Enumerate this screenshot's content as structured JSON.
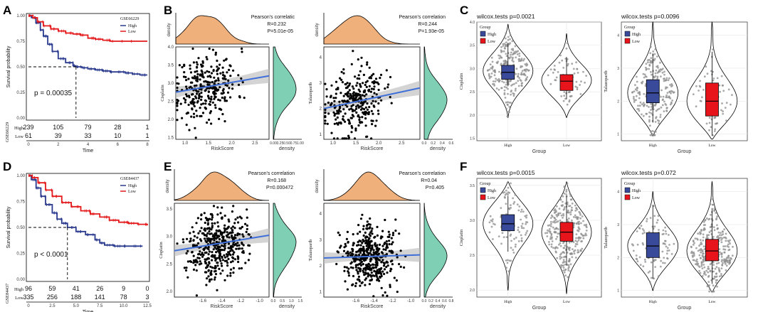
{
  "panel_labels": {
    "A": "A",
    "B": "B",
    "C": "C",
    "D": "D",
    "E": "E",
    "F": "F"
  },
  "colors": {
    "high": "#2b3b8f",
    "low": "#e41a1c",
    "orange": "#f0b07c",
    "teal": "#7fcfb5",
    "blue": "#3f6fd8",
    "box_high": "#3a4a9a",
    "box_low": "#e8141c",
    "grey_pts": "#8c8c8c"
  },
  "chart_data": [
    {
      "id": "A",
      "type": "survival",
      "dataset_label": "GSE66229",
      "legend": [
        "High",
        "Low"
      ],
      "ylabel": "Survival probability",
      "xlabel": "Time",
      "xlim": [
        0,
        8
      ],
      "ylim": [
        0,
        1
      ],
      "xticks": [
        "0",
        "2",
        "4",
        "6",
        "8"
      ],
      "yticks": [
        "0.00",
        "0.25",
        "0.50",
        "0.75",
        "1.00"
      ],
      "pvalue": "p = 0.00035",
      "median_time": 3.2,
      "curves": {
        "high": [
          [
            0,
            1
          ],
          [
            0.2,
            0.98
          ],
          [
            0.5,
            0.93
          ],
          [
            0.8,
            0.86
          ],
          [
            1.0,
            0.8
          ],
          [
            1.3,
            0.72
          ],
          [
            1.6,
            0.65
          ],
          [
            2.0,
            0.58
          ],
          [
            2.5,
            0.54
          ],
          [
            3.0,
            0.51
          ],
          [
            3.2,
            0.5
          ],
          [
            3.6,
            0.49
          ],
          [
            4.0,
            0.48
          ],
          [
            4.5,
            0.47
          ],
          [
            5.0,
            0.46
          ],
          [
            5.5,
            0.45
          ],
          [
            6.0,
            0.45
          ],
          [
            6.5,
            0.44
          ],
          [
            7.0,
            0.43
          ],
          [
            7.5,
            0.42
          ],
          [
            8.0,
            0.42
          ]
        ],
        "low": [
          [
            0,
            1
          ],
          [
            0.3,
            0.98
          ],
          [
            0.6,
            0.94
          ],
          [
            1.0,
            0.9
          ],
          [
            1.5,
            0.87
          ],
          [
            2.0,
            0.85
          ],
          [
            2.5,
            0.83
          ],
          [
            3.0,
            0.82
          ],
          [
            3.5,
            0.81
          ],
          [
            4.0,
            0.78
          ],
          [
            4.5,
            0.77
          ],
          [
            5.0,
            0.76
          ],
          [
            5.5,
            0.75
          ],
          [
            8.0,
            0.75
          ]
        ]
      },
      "risk_table": {
        "title": "GSE66229",
        "rows": [
          {
            "label": "High",
            "values": [
              "239",
              "105",
              "79",
              "28",
              "1"
            ]
          },
          {
            "label": "Low",
            "values": [
              "61",
              "39",
              "33",
              "10",
              "1"
            ]
          }
        ]
      }
    },
    {
      "id": "D",
      "type": "survival",
      "dataset_label": "GSE84437",
      "legend": [
        "High",
        "Low"
      ],
      "ylabel": "Survival probability",
      "xlabel": "Time",
      "xlim": [
        0,
        12.5
      ],
      "ylim": [
        0,
        1
      ],
      "xticks": [
        "0",
        "2.5",
        "5.0",
        "7.5",
        "10.0",
        "12.5"
      ],
      "yticks": [
        "0.00",
        "0.25",
        "0.50",
        "0.75",
        "1.00"
      ],
      "pvalue": "p < 0.0001",
      "median_time": 4.1,
      "curves": {
        "high": [
          [
            0,
            1
          ],
          [
            0.3,
            0.96
          ],
          [
            0.8,
            0.88
          ],
          [
            1.3,
            0.8
          ],
          [
            1.8,
            0.72
          ],
          [
            2.5,
            0.64
          ],
          [
            3.0,
            0.58
          ],
          [
            3.5,
            0.54
          ],
          [
            4.1,
            0.5
          ],
          [
            5.0,
            0.46
          ],
          [
            6.0,
            0.43
          ],
          [
            7.0,
            0.38
          ],
          [
            7.5,
            0.35
          ],
          [
            8.0,
            0.33
          ],
          [
            9.0,
            0.32
          ],
          [
            10.0,
            0.32
          ],
          [
            11.0,
            0.32
          ],
          [
            12.0,
            0.32
          ]
        ],
        "low": [
          [
            0,
            1
          ],
          [
            0.4,
            0.98
          ],
          [
            1.0,
            0.93
          ],
          [
            1.8,
            0.86
          ],
          [
            2.5,
            0.8
          ],
          [
            3.5,
            0.74
          ],
          [
            4.5,
            0.7
          ],
          [
            5.5,
            0.66
          ],
          [
            6.5,
            0.63
          ],
          [
            7.5,
            0.6
          ],
          [
            8.5,
            0.57
          ],
          [
            9.5,
            0.55
          ],
          [
            10.5,
            0.54
          ],
          [
            11.5,
            0.53
          ],
          [
            12.5,
            0.52
          ]
        ]
      },
      "risk_table": {
        "title": "GSE84437",
        "rows": [
          {
            "label": "High",
            "values": [
              "96",
              "59",
              "41",
              "26",
              "9",
              "0"
            ]
          },
          {
            "label": "Low",
            "values": [
              "335",
              "256",
              "188",
              "141",
              "78",
              "3"
            ]
          }
        ]
      }
    },
    {
      "id": "B1",
      "type": "scatter_marginal",
      "ylabel": "Cisplatin",
      "xlabel": "RiskScore",
      "corr_title": "Pearson's correlatic",
      "r": "R=0.232",
      "p": "P=5.01e-05",
      "xlim": [
        0.8,
        2.8
      ],
      "ylim": [
        1.45,
        4.0
      ],
      "xticks": [
        "1.0",
        "1.5",
        "2.0",
        "2.5"
      ],
      "yticks": [
        "1.5",
        "2.0",
        "2.5",
        "3.0",
        "3.5",
        "4.0"
      ],
      "fit": {
        "x0": 0.8,
        "y0": 2.75,
        "x1": 2.8,
        "y1": 3.2
      },
      "density_label": "density",
      "density_xticks": [
        "0.00",
        "0.25",
        "0.50",
        "0.75",
        "1.00"
      ],
      "n_points": 300,
      "x_mean": 1.45,
      "x_sd": 0.33,
      "y_mean": 2.8,
      "y_sd": 0.45,
      "seed": 11
    },
    {
      "id": "B2",
      "type": "scatter_marginal",
      "ylabel": "Talazoparib",
      "xlabel": "RiskScore",
      "corr_title": "Pearson's correlation",
      "r": "R=0.244",
      "p": "P=1.93e-05",
      "xlim": [
        0.8,
        2.9
      ],
      "ylim": [
        0.8,
        4.4
      ],
      "xticks": [
        "1.0",
        "1.5",
        "2.0",
        "2.5"
      ],
      "yticks": [
        "1",
        "2",
        "3",
        "4"
      ],
      "fit": {
        "x0": 0.8,
        "y0": 2.0,
        "x1": 2.9,
        "y1": 2.8
      },
      "density_label": "density",
      "density_xticks": [
        "0.0",
        "0.2",
        "0.4",
        "0.6"
      ],
      "n_points": 300,
      "x_mean": 1.45,
      "x_sd": 0.33,
      "y_mean": 2.3,
      "y_sd": 0.65,
      "seed": 23
    },
    {
      "id": "E1",
      "type": "scatter_marginal",
      "ylabel": "Cisplatin",
      "xlabel": "RiskScore",
      "corr_title": "Pearson's correlation",
      "r": "R=0.168",
      "p": "P=0.000472",
      "xlim": [
        -1.9,
        -0.9
      ],
      "ylim": [
        1.9,
        3.6
      ],
      "xticks": [
        "-1.6",
        "-1.4",
        "-1.2",
        "-1.0"
      ],
      "yticks": [
        "2.0",
        "2.5",
        "3.0",
        "3.5"
      ],
      "fit": {
        "x0": -1.9,
        "y0": 2.74,
        "x1": -0.9,
        "y1": 3.02
      },
      "density_label": "density",
      "density_xticks": [
        "0.0",
        "0.5",
        "1.0",
        "1.5"
      ],
      "n_points": 430,
      "x_mean": -1.45,
      "x_sd": 0.15,
      "y_mean": 2.88,
      "y_sd": 0.3,
      "seed": 37
    },
    {
      "id": "E2",
      "type": "scatter_marginal",
      "ylabel": "Talazoparib",
      "xlabel": "RiskScore",
      "corr_title": "Pearson's correlation",
      "r": "R=0.04",
      "p": "P=0.405",
      "xlim": [
        -1.95,
        -0.9
      ],
      "ylim": [
        0.8,
        4.4
      ],
      "xticks": [
        "-1.6",
        "-1.4",
        "-1.2",
        "-1.0"
      ],
      "yticks": [
        "1",
        "2",
        "3",
        "4"
      ],
      "fit": {
        "x0": -1.95,
        "y0": 2.3,
        "x1": -0.9,
        "y1": 2.42
      },
      "density_label": "density",
      "density_xticks": [
        "0.0",
        "0.2",
        "0.4",
        "0.6",
        "0.8"
      ],
      "n_points": 430,
      "x_mean": -1.45,
      "x_sd": 0.15,
      "y_mean": 2.35,
      "y_sd": 0.6,
      "seed": 41
    },
    {
      "id": "C1",
      "type": "violin",
      "title": "wilcox.tests p=0.0021",
      "ylabel": "Cisplatin",
      "xlabel": "Group",
      "legend_title": "Group",
      "groups": [
        "High",
        "Low"
      ],
      "ylim": [
        1.45,
        4.0
      ],
      "yticks": [
        "1.5",
        "2.0",
        "2.5",
        "3.0",
        "3.5",
        "4.0"
      ],
      "box": {
        "High": [
          2.62,
          2.77,
          2.92,
          3.07,
          3.55
        ],
        "Low": [
          2.34,
          2.53,
          2.73,
          2.87,
          3.25
        ]
      },
      "range": {
        "High": [
          1.95,
          3.95
        ],
        "Low": [
          1.95,
          3.75
        ]
      },
      "center": {
        "High": 2.95,
        "Low": 2.75
      },
      "n": {
        "High": 239,
        "Low": 61
      }
    },
    {
      "id": "C2",
      "type": "violin",
      "title": "wilcox.tests p=0.0096",
      "ylabel": "Talazoparib",
      "xlabel": "Group",
      "legend_title": "Group",
      "groups": [
        "High",
        "Low"
      ],
      "ylim": [
        0.8,
        4.4
      ],
      "yticks": [
        "1",
        "2",
        "3",
        "4"
      ],
      "box": {
        "High": [
          1.35,
          1.95,
          2.25,
          2.65,
          3.45
        ],
        "Low": [
          0.95,
          1.55,
          2.0,
          2.55,
          3.5
        ]
      },
      "range": {
        "High": [
          0.95,
          4.4
        ],
        "Low": [
          0.85,
          4.4
        ]
      },
      "center": {
        "High": 2.25,
        "Low": 2.0
      },
      "n": {
        "High": 239,
        "Low": 61
      }
    },
    {
      "id": "F1",
      "type": "violin",
      "title": "wilcox.tests p=0.0015",
      "ylabel": "Cisplatin",
      "xlabel": "Group",
      "legend_title": "Group",
      "groups": [
        "High",
        "Low"
      ],
      "ylim": [
        1.9,
        3.6
      ],
      "yticks": [
        "2.0",
        "2.5",
        "3.0",
        "3.5"
      ],
      "box": {
        "High": [
          2.55,
          2.85,
          2.95,
          3.08,
          3.35
        ],
        "Low": [
          2.35,
          2.7,
          2.83,
          2.97,
          3.35
        ]
      },
      "range": {
        "High": [
          2.0,
          3.55
        ],
        "Low": [
          1.95,
          3.55
        ]
      },
      "center": {
        "High": 2.95,
        "Low": 2.83
      },
      "n": {
        "High": 96,
        "Low": 335
      }
    },
    {
      "id": "F2",
      "type": "violin",
      "title": "wilcox.tests p=0.072",
      "ylabel": "Talazoparib",
      "xlabel": "Group",
      "legend_title": "Group",
      "groups": [
        "High",
        "Low"
      ],
      "ylim": [
        0.8,
        4.4
      ],
      "yticks": [
        "1",
        "2",
        "3",
        "4"
      ],
      "box": {
        "High": [
          1.35,
          2.0,
          2.35,
          2.75,
          3.6
        ],
        "Low": [
          1.2,
          1.9,
          2.2,
          2.55,
          3.5
        ]
      },
      "range": {
        "High": [
          1.0,
          4.0
        ],
        "Low": [
          0.95,
          4.3
        ]
      },
      "center": {
        "High": 2.35,
        "Low": 2.2
      },
      "n": {
        "High": 96,
        "Low": 335
      }
    }
  ]
}
